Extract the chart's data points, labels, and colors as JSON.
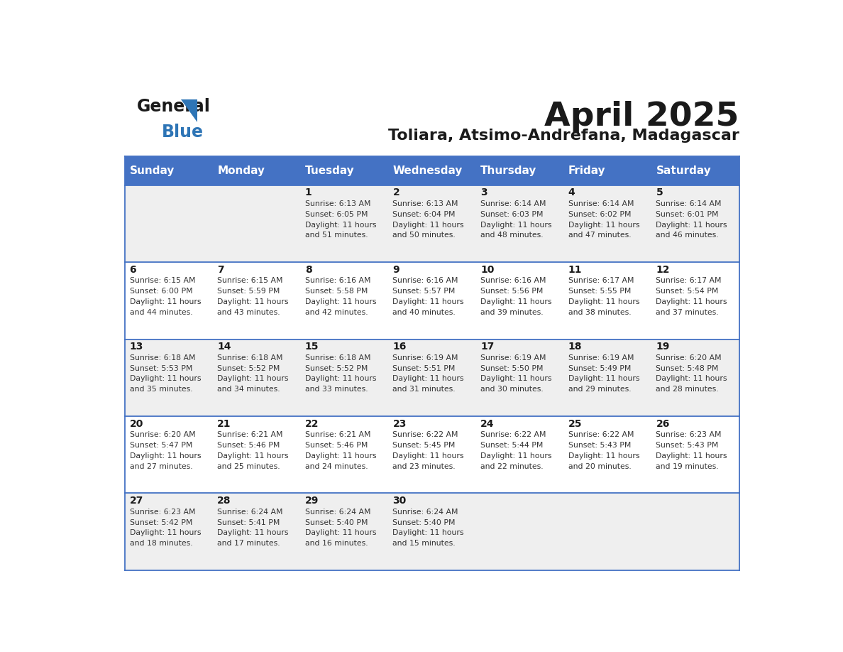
{
  "title": "April 2025",
  "subtitle": "Toliara, Atsimo-Andrefana, Madagascar",
  "header_bg_color": "#4472C4",
  "header_text_color": "#FFFFFF",
  "cell_bg_color_light": "#EFEFEF",
  "cell_bg_color_white": "#FFFFFF",
  "border_color": "#4472C4",
  "day_names": [
    "Sunday",
    "Monday",
    "Tuesday",
    "Wednesday",
    "Thursday",
    "Friday",
    "Saturday"
  ],
  "weeks": [
    [
      {
        "day": "",
        "sunrise": "",
        "sunset": "",
        "daylight": ""
      },
      {
        "day": "",
        "sunrise": "",
        "sunset": "",
        "daylight": ""
      },
      {
        "day": "1",
        "sunrise": "Sunrise: 6:13 AM",
        "sunset": "Sunset: 6:05 PM",
        "daylight": "Daylight: 11 hours\nand 51 minutes."
      },
      {
        "day": "2",
        "sunrise": "Sunrise: 6:13 AM",
        "sunset": "Sunset: 6:04 PM",
        "daylight": "Daylight: 11 hours\nand 50 minutes."
      },
      {
        "day": "3",
        "sunrise": "Sunrise: 6:14 AM",
        "sunset": "Sunset: 6:03 PM",
        "daylight": "Daylight: 11 hours\nand 48 minutes."
      },
      {
        "day": "4",
        "sunrise": "Sunrise: 6:14 AM",
        "sunset": "Sunset: 6:02 PM",
        "daylight": "Daylight: 11 hours\nand 47 minutes."
      },
      {
        "day": "5",
        "sunrise": "Sunrise: 6:14 AM",
        "sunset": "Sunset: 6:01 PM",
        "daylight": "Daylight: 11 hours\nand 46 minutes."
      }
    ],
    [
      {
        "day": "6",
        "sunrise": "Sunrise: 6:15 AM",
        "sunset": "Sunset: 6:00 PM",
        "daylight": "Daylight: 11 hours\nand 44 minutes."
      },
      {
        "day": "7",
        "sunrise": "Sunrise: 6:15 AM",
        "sunset": "Sunset: 5:59 PM",
        "daylight": "Daylight: 11 hours\nand 43 minutes."
      },
      {
        "day": "8",
        "sunrise": "Sunrise: 6:16 AM",
        "sunset": "Sunset: 5:58 PM",
        "daylight": "Daylight: 11 hours\nand 42 minutes."
      },
      {
        "day": "9",
        "sunrise": "Sunrise: 6:16 AM",
        "sunset": "Sunset: 5:57 PM",
        "daylight": "Daylight: 11 hours\nand 40 minutes."
      },
      {
        "day": "10",
        "sunrise": "Sunrise: 6:16 AM",
        "sunset": "Sunset: 5:56 PM",
        "daylight": "Daylight: 11 hours\nand 39 minutes."
      },
      {
        "day": "11",
        "sunrise": "Sunrise: 6:17 AM",
        "sunset": "Sunset: 5:55 PM",
        "daylight": "Daylight: 11 hours\nand 38 minutes."
      },
      {
        "day": "12",
        "sunrise": "Sunrise: 6:17 AM",
        "sunset": "Sunset: 5:54 PM",
        "daylight": "Daylight: 11 hours\nand 37 minutes."
      }
    ],
    [
      {
        "day": "13",
        "sunrise": "Sunrise: 6:18 AM",
        "sunset": "Sunset: 5:53 PM",
        "daylight": "Daylight: 11 hours\nand 35 minutes."
      },
      {
        "day": "14",
        "sunrise": "Sunrise: 6:18 AM",
        "sunset": "Sunset: 5:52 PM",
        "daylight": "Daylight: 11 hours\nand 34 minutes."
      },
      {
        "day": "15",
        "sunrise": "Sunrise: 6:18 AM",
        "sunset": "Sunset: 5:52 PM",
        "daylight": "Daylight: 11 hours\nand 33 minutes."
      },
      {
        "day": "16",
        "sunrise": "Sunrise: 6:19 AM",
        "sunset": "Sunset: 5:51 PM",
        "daylight": "Daylight: 11 hours\nand 31 minutes."
      },
      {
        "day": "17",
        "sunrise": "Sunrise: 6:19 AM",
        "sunset": "Sunset: 5:50 PM",
        "daylight": "Daylight: 11 hours\nand 30 minutes."
      },
      {
        "day": "18",
        "sunrise": "Sunrise: 6:19 AM",
        "sunset": "Sunset: 5:49 PM",
        "daylight": "Daylight: 11 hours\nand 29 minutes."
      },
      {
        "day": "19",
        "sunrise": "Sunrise: 6:20 AM",
        "sunset": "Sunset: 5:48 PM",
        "daylight": "Daylight: 11 hours\nand 28 minutes."
      }
    ],
    [
      {
        "day": "20",
        "sunrise": "Sunrise: 6:20 AM",
        "sunset": "Sunset: 5:47 PM",
        "daylight": "Daylight: 11 hours\nand 27 minutes."
      },
      {
        "day": "21",
        "sunrise": "Sunrise: 6:21 AM",
        "sunset": "Sunset: 5:46 PM",
        "daylight": "Daylight: 11 hours\nand 25 minutes."
      },
      {
        "day": "22",
        "sunrise": "Sunrise: 6:21 AM",
        "sunset": "Sunset: 5:46 PM",
        "daylight": "Daylight: 11 hours\nand 24 minutes."
      },
      {
        "day": "23",
        "sunrise": "Sunrise: 6:22 AM",
        "sunset": "Sunset: 5:45 PM",
        "daylight": "Daylight: 11 hours\nand 23 minutes."
      },
      {
        "day": "24",
        "sunrise": "Sunrise: 6:22 AM",
        "sunset": "Sunset: 5:44 PM",
        "daylight": "Daylight: 11 hours\nand 22 minutes."
      },
      {
        "day": "25",
        "sunrise": "Sunrise: 6:22 AM",
        "sunset": "Sunset: 5:43 PM",
        "daylight": "Daylight: 11 hours\nand 20 minutes."
      },
      {
        "day": "26",
        "sunrise": "Sunrise: 6:23 AM",
        "sunset": "Sunset: 5:43 PM",
        "daylight": "Daylight: 11 hours\nand 19 minutes."
      }
    ],
    [
      {
        "day": "27",
        "sunrise": "Sunrise: 6:23 AM",
        "sunset": "Sunset: 5:42 PM",
        "daylight": "Daylight: 11 hours\nand 18 minutes."
      },
      {
        "day": "28",
        "sunrise": "Sunrise: 6:24 AM",
        "sunset": "Sunset: 5:41 PM",
        "daylight": "Daylight: 11 hours\nand 17 minutes."
      },
      {
        "day": "29",
        "sunrise": "Sunrise: 6:24 AM",
        "sunset": "Sunset: 5:40 PM",
        "daylight": "Daylight: 11 hours\nand 16 minutes."
      },
      {
        "day": "30",
        "sunrise": "Sunrise: 6:24 AM",
        "sunset": "Sunset: 5:40 PM",
        "daylight": "Daylight: 11 hours\nand 15 minutes."
      },
      {
        "day": "",
        "sunrise": "",
        "sunset": "",
        "daylight": ""
      },
      {
        "day": "",
        "sunrise": "",
        "sunset": "",
        "daylight": ""
      },
      {
        "day": "",
        "sunrise": "",
        "sunset": "",
        "daylight": ""
      }
    ]
  ]
}
